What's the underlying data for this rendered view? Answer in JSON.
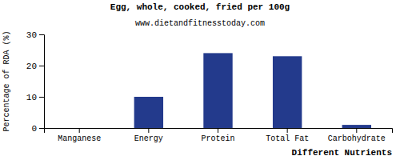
{
  "chart_data": {
    "type": "bar",
    "title": "Egg, whole, cooked, fried per 100g",
    "subtitle": "www.dietandfitnesstoday.com",
    "x_label": "Different Nutrients",
    "y_label": "Percentage of RDA (%)",
    "categories": [
      "Manganese",
      "Energy",
      "Protein",
      "Total Fat",
      "Carbohydrate"
    ],
    "values": [
      0,
      10,
      24,
      23,
      1
    ],
    "color": "#233a8c",
    "ylim": [
      0,
      30
    ],
    "yticks": [
      0,
      10,
      20,
      30
    ],
    "grid": false
  }
}
